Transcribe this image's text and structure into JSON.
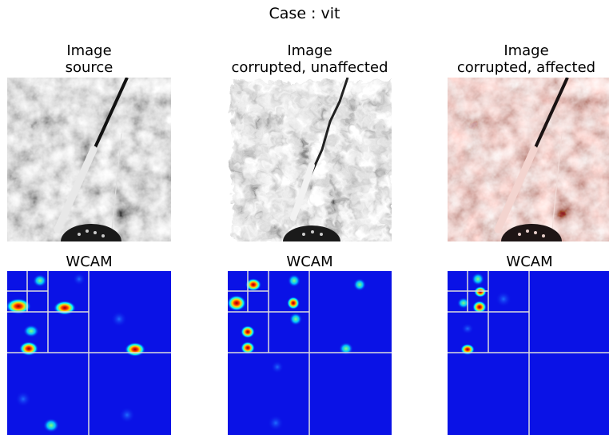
{
  "figure": {
    "suptitle": "Case : vit",
    "columns": [
      {
        "image_title_line1": "Image",
        "image_title_line2": "source",
        "wcam_title": "WCAM",
        "image_tint": "grayscale"
      },
      {
        "image_title_line1": "Image",
        "image_title_line2": "corrupted, unaffected",
        "wcam_title": "WCAM",
        "image_tint": "grayscale-distorted"
      },
      {
        "image_title_line1": "Image",
        "image_title_line2": "corrupted, affected",
        "wcam_title": "WCAM",
        "image_tint": "pink-sepia"
      }
    ],
    "colors": {
      "wcam_background": "#0a12e6",
      "wcam_grid": "#dcdcdc",
      "hot_spot_core": "#8b0000",
      "hot_spot_mid": "#ffd700",
      "hot_spot_outer": "#00ffff",
      "pink_tint": "#c9a3a0"
    }
  }
}
